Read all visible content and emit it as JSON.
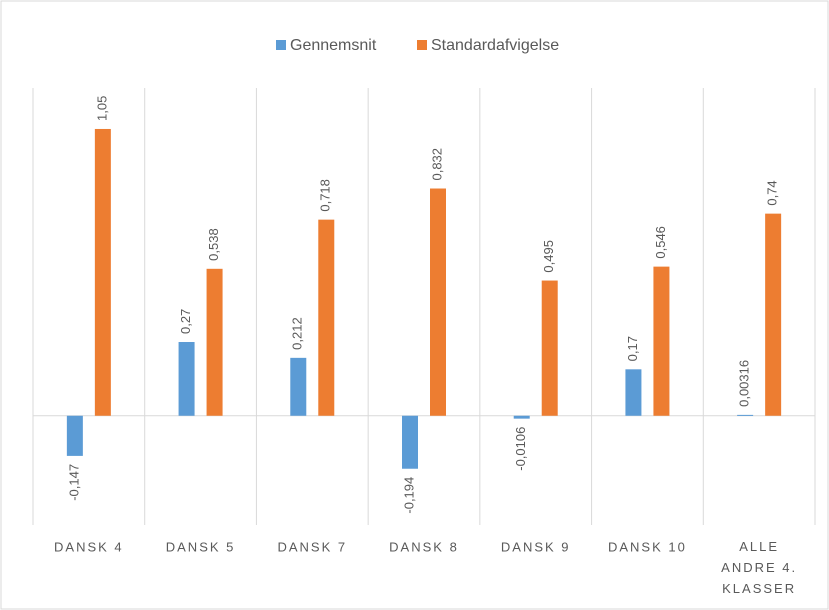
{
  "chart_data": {
    "type": "bar",
    "categories": [
      "DANSK 4",
      "DANSK 5",
      "DANSK 7",
      "DANSK 8",
      "DANSK 9",
      "DANSK 10",
      "ALLE ANDRE 4. KLASSER"
    ],
    "series": [
      {
        "name": "Gennemsnit",
        "color": "#5b9bd5",
        "values": [
          -0.147,
          0.27,
          0.212,
          -0.194,
          -0.0106,
          0.17,
          0.00316
        ],
        "value_labels": [
          "-0,147",
          "0,27",
          "0,212",
          "-0,194",
          "-0,0106",
          "0,17",
          "0,00316"
        ]
      },
      {
        "name": "Standardafvigelse",
        "color": "#ed7d31",
        "values": [
          1.05,
          0.538,
          0.718,
          0.832,
          0.495,
          0.546,
          0.74
        ],
        "value_labels": [
          "1,05",
          "0,538",
          "0,718",
          "0,832",
          "0,495",
          "0,546",
          "0,74"
        ]
      }
    ],
    "ylim": [
      -0.4,
      1.2
    ],
    "legend": "top"
  }
}
